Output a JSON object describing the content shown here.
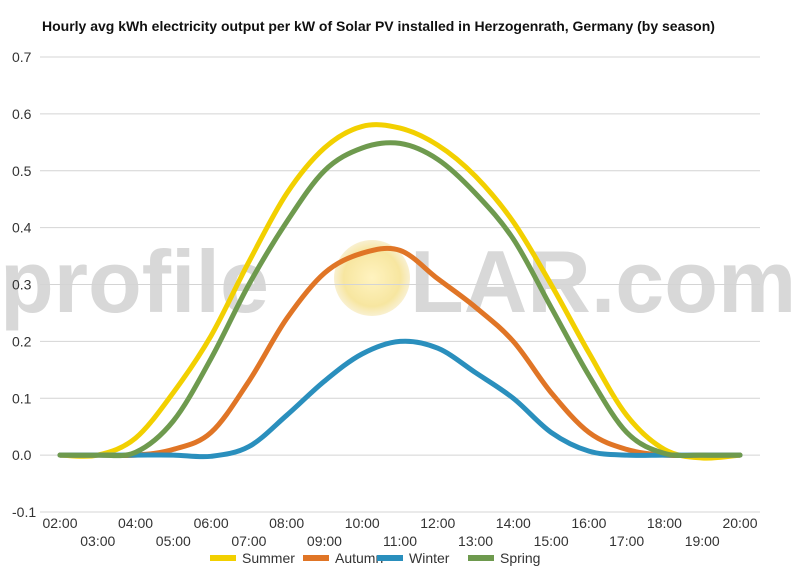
{
  "chart_data": {
    "type": "line",
    "title": "Hourly avg kWh electricity output per kW of Solar PV installed in Herzogenrath, Germany (by season)",
    "xlabel": "",
    "ylabel": "",
    "ylim": [
      -0.1,
      0.7
    ],
    "yticks": [
      "-0.1",
      "0.0",
      "0.1",
      "0.2",
      "0.3",
      "0.4",
      "0.5",
      "0.6",
      "0.7"
    ],
    "x": [
      "02:00",
      "03:00",
      "04:00",
      "05:00",
      "06:00",
      "07:00",
      "08:00",
      "09:00",
      "10:00",
      "11:00",
      "12:00",
      "13:00",
      "14:00",
      "15:00",
      "16:00",
      "17:00",
      "18:00",
      "19:00",
      "20:00"
    ],
    "grid": true,
    "legend_position": "bottom",
    "series": [
      {
        "name": "Summer",
        "color": "#f2d000",
        "values": [
          0.0,
          0.0,
          0.03,
          0.11,
          0.21,
          0.34,
          0.46,
          0.54,
          0.578,
          0.575,
          0.545,
          0.49,
          0.41,
          0.3,
          0.18,
          0.07,
          0.01,
          -0.005,
          0.0
        ]
      },
      {
        "name": "Autumn",
        "color": "#e07526",
        "values": [
          0.0,
          0.0,
          0.0,
          0.01,
          0.04,
          0.13,
          0.24,
          0.32,
          0.355,
          0.36,
          0.31,
          0.26,
          0.2,
          0.11,
          0.04,
          0.01,
          0.0,
          0.0,
          0.0
        ]
      },
      {
        "name": "Winter",
        "color": "#2a8fbd",
        "values": [
          0.0,
          0.0,
          0.0,
          0.0,
          -0.002,
          0.015,
          0.07,
          0.13,
          0.178,
          0.2,
          0.188,
          0.145,
          0.1,
          0.04,
          0.007,
          0.0,
          0.0,
          0.0,
          0.0
        ]
      },
      {
        "name": "Spring",
        "color": "#6e9a4e",
        "values": [
          0.0,
          0.0,
          0.005,
          0.06,
          0.17,
          0.3,
          0.41,
          0.5,
          0.54,
          0.548,
          0.52,
          0.46,
          0.38,
          0.26,
          0.14,
          0.04,
          0.003,
          0.0,
          0.0
        ]
      }
    ]
  },
  "watermark": {
    "before": "profile",
    "s": "S",
    "after": "LAR.com"
  }
}
